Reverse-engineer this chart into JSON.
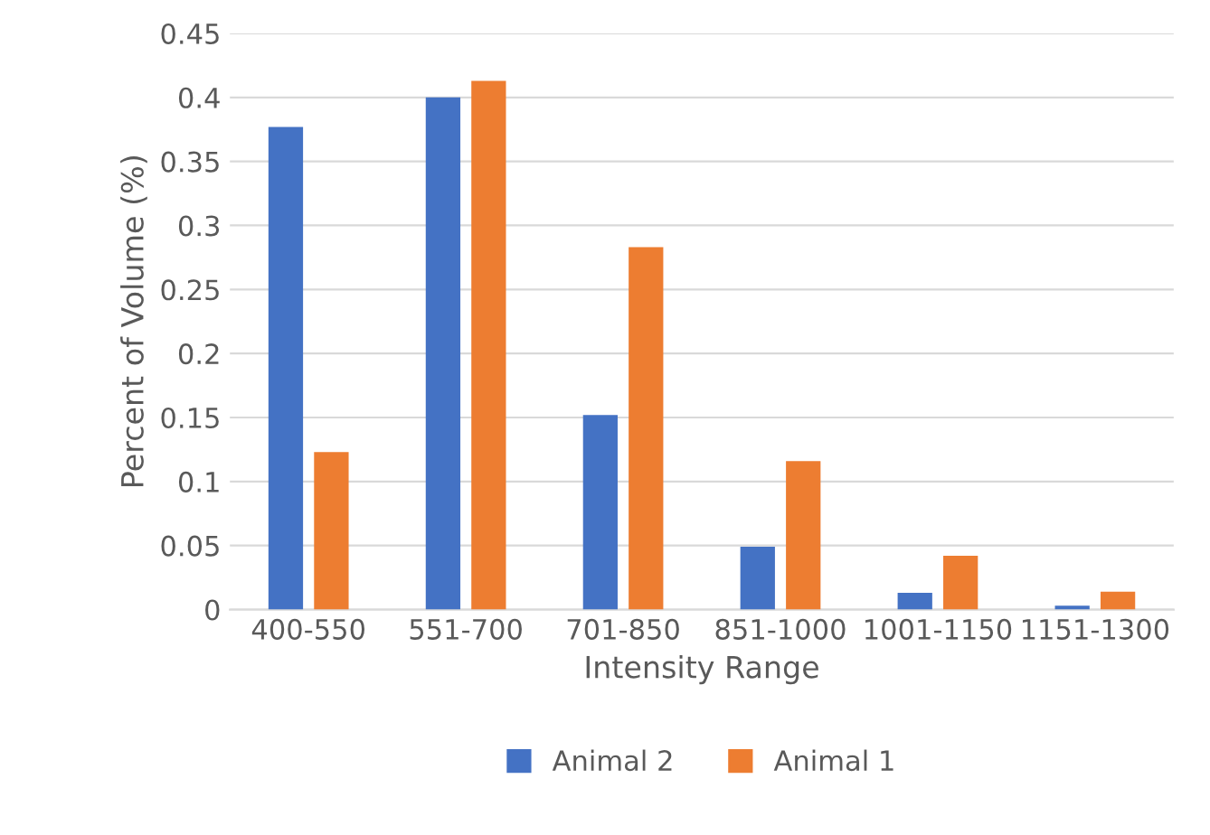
{
  "chart_data": {
    "type": "bar",
    "xlabel": "Intensity Range",
    "ylabel": "Percent of Volume (%)",
    "categories": [
      "400-550",
      "551-700",
      "701-850",
      "851-1000",
      "1001-1150",
      "1151-1300"
    ],
    "series": [
      {
        "name": "Animal 2",
        "color": "#4472c4",
        "values": [
          0.377,
          0.4,
          0.152,
          0.049,
          0.013,
          0.003
        ]
      },
      {
        "name": "Animal 1",
        "color": "#ed7d31",
        "values": [
          0.123,
          0.413,
          0.283,
          0.116,
          0.042,
          0.014
        ]
      }
    ],
    "ylim": [
      0,
      0.45
    ],
    "yticks": [
      0,
      0.05,
      0.1,
      0.15,
      0.2,
      0.25,
      0.3,
      0.35,
      0.4,
      0.45
    ],
    "grid": "y",
    "legend": "bottom"
  }
}
